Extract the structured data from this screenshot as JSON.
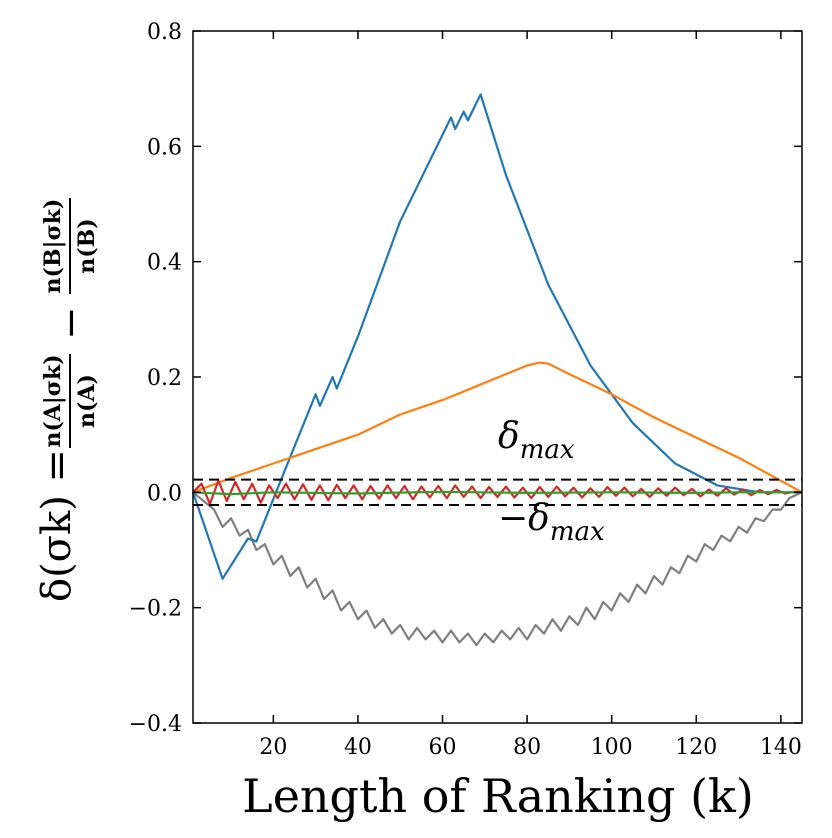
{
  "chart_data": {
    "type": "line",
    "title": "",
    "xlabel": "Length of Ranking (k)",
    "ylabel": {
      "prefix": "δ(σk) =",
      "frac1_num": "n(A|σk)",
      "frac1_den": "n(A)",
      "minus": "−",
      "frac2_num": "n(B|σk)",
      "frac2_den": "n(B)"
    },
    "xlim": [
      1,
      145
    ],
    "ylim": [
      -0.4,
      0.8
    ],
    "xticks": [
      20,
      40,
      60,
      80,
      100,
      120,
      140
    ],
    "xtick_labels": [
      "20",
      "40",
      "60",
      "80",
      "100",
      "120",
      "140"
    ],
    "yticks": [
      -0.4,
      -0.2,
      0.0,
      0.2,
      0.4,
      0.6,
      0.8
    ],
    "ytick_labels": [
      "−0.4",
      "−0.2",
      "0.0",
      "0.2",
      "0.4",
      "0.6",
      "0.8"
    ],
    "grid": false,
    "reference_lines": [
      {
        "y": 0.022,
        "style": "dashed",
        "color": "#000000",
        "label": "δmax"
      },
      {
        "y": -0.022,
        "style": "dashed",
        "color": "#000000",
        "label": "−δmax"
      }
    ],
    "annotations": [
      {
        "text": "δ",
        "subscript": "max",
        "x": 95,
        "y": 0.07
      },
      {
        "text": "−δ",
        "subscript": "max",
        "x": 95,
        "y": -0.07
      }
    ],
    "series": [
      {
        "name": "blue",
        "color": "#1f77b4",
        "x": [
          1,
          8,
          14,
          16,
          22,
          30,
          31,
          34,
          35,
          40,
          50,
          62,
          63,
          65,
          66,
          69,
          75,
          85,
          95,
          105,
          115,
          125,
          135,
          145
        ],
        "y": [
          0.0,
          -0.15,
          -0.08,
          -0.085,
          0.025,
          0.17,
          0.15,
          0.2,
          0.18,
          0.27,
          0.47,
          0.65,
          0.63,
          0.66,
          0.645,
          0.69,
          0.55,
          0.36,
          0.22,
          0.12,
          0.05,
          0.012,
          0.0,
          0.0
        ]
      },
      {
        "name": "orange",
        "color": "#ff7f0e",
        "x": [
          1,
          10,
          20,
          30,
          40,
          50,
          60,
          70,
          75,
          80,
          83,
          85,
          90,
          100,
          110,
          120,
          130,
          145
        ],
        "y": [
          0.0,
          0.025,
          0.05,
          0.075,
          0.1,
          0.135,
          0.16,
          0.19,
          0.205,
          0.22,
          0.225,
          0.223,
          0.205,
          0.17,
          0.13,
          0.095,
          0.06,
          0.0
        ]
      },
      {
        "name": "red",
        "color": "#d62728",
        "x": [
          1,
          3,
          5,
          7,
          9,
          11,
          13,
          15,
          17,
          19,
          21,
          23,
          25,
          27,
          29,
          31,
          33,
          35,
          37,
          39,
          41,
          43,
          45,
          47,
          49,
          51,
          53,
          55,
          57,
          59,
          61,
          63,
          65,
          67,
          69,
          71,
          73,
          75,
          77,
          79,
          81,
          83,
          85,
          87,
          89,
          91,
          93,
          95,
          97,
          99,
          101,
          103,
          105,
          107,
          109,
          111,
          113,
          115,
          117,
          119,
          121,
          123,
          125,
          127,
          129,
          131,
          133,
          135,
          137,
          139,
          141,
          143,
          145
        ],
        "y": [
          0.0,
          0.015,
          -0.02,
          0.02,
          -0.015,
          0.018,
          -0.012,
          0.015,
          -0.018,
          0.012,
          -0.01,
          0.015,
          -0.012,
          0.014,
          -0.013,
          0.012,
          -0.014,
          0.013,
          -0.01,
          0.012,
          -0.012,
          0.011,
          -0.011,
          0.012,
          -0.01,
          0.011,
          -0.012,
          0.01,
          -0.009,
          0.011,
          -0.01,
          0.012,
          -0.008,
          0.01,
          -0.01,
          0.009,
          -0.008,
          0.01,
          -0.009,
          0.008,
          -0.01,
          0.009,
          -0.008,
          0.01,
          -0.007,
          0.008,
          -0.009,
          0.007,
          -0.008,
          0.009,
          -0.006,
          0.008,
          -0.007,
          0.006,
          -0.008,
          0.007,
          -0.006,
          0.008,
          -0.005,
          0.006,
          -0.007,
          0.005,
          -0.006,
          0.007,
          -0.004,
          0.005,
          -0.005,
          0.004,
          -0.003,
          0.004,
          -0.002,
          0.001,
          0.0
        ]
      },
      {
        "name": "green",
        "color": "#2ca02c",
        "x": [
          1,
          10,
          20,
          40,
          60,
          80,
          100,
          120,
          130,
          145
        ],
        "y": [
          0.0,
          -0.003,
          0.0,
          -0.002,
          0.001,
          -0.001,
          0.0,
          -0.001,
          0.0,
          0.0
        ]
      },
      {
        "name": "gray",
        "color": "#7f7f7f",
        "x": [
          1,
          6,
          8,
          10,
          12,
          14,
          16,
          18,
          20,
          22,
          24,
          26,
          28,
          30,
          32,
          34,
          36,
          38,
          40,
          42,
          44,
          46,
          48,
          50,
          52,
          54,
          56,
          58,
          60,
          62,
          64,
          66,
          68,
          70,
          72,
          74,
          76,
          78,
          80,
          82,
          84,
          86,
          88,
          90,
          92,
          94,
          96,
          98,
          100,
          102,
          104,
          106,
          108,
          110,
          112,
          114,
          116,
          118,
          120,
          122,
          124,
          126,
          128,
          130,
          132,
          134,
          136,
          138,
          140,
          142,
          145
        ],
        "y": [
          0.0,
          -0.03,
          -0.06,
          -0.045,
          -0.075,
          -0.065,
          -0.1,
          -0.09,
          -0.125,
          -0.11,
          -0.145,
          -0.13,
          -0.165,
          -0.15,
          -0.185,
          -0.17,
          -0.205,
          -0.19,
          -0.22,
          -0.205,
          -0.235,
          -0.22,
          -0.245,
          -0.23,
          -0.255,
          -0.235,
          -0.255,
          -0.24,
          -0.26,
          -0.24,
          -0.26,
          -0.245,
          -0.265,
          -0.245,
          -0.26,
          -0.24,
          -0.255,
          -0.235,
          -0.255,
          -0.23,
          -0.245,
          -0.22,
          -0.24,
          -0.215,
          -0.23,
          -0.2,
          -0.22,
          -0.19,
          -0.205,
          -0.175,
          -0.19,
          -0.16,
          -0.175,
          -0.145,
          -0.16,
          -0.13,
          -0.14,
          -0.11,
          -0.12,
          -0.09,
          -0.1,
          -0.075,
          -0.085,
          -0.06,
          -0.07,
          -0.045,
          -0.05,
          -0.03,
          -0.03,
          -0.01,
          0.0
        ]
      }
    ]
  }
}
